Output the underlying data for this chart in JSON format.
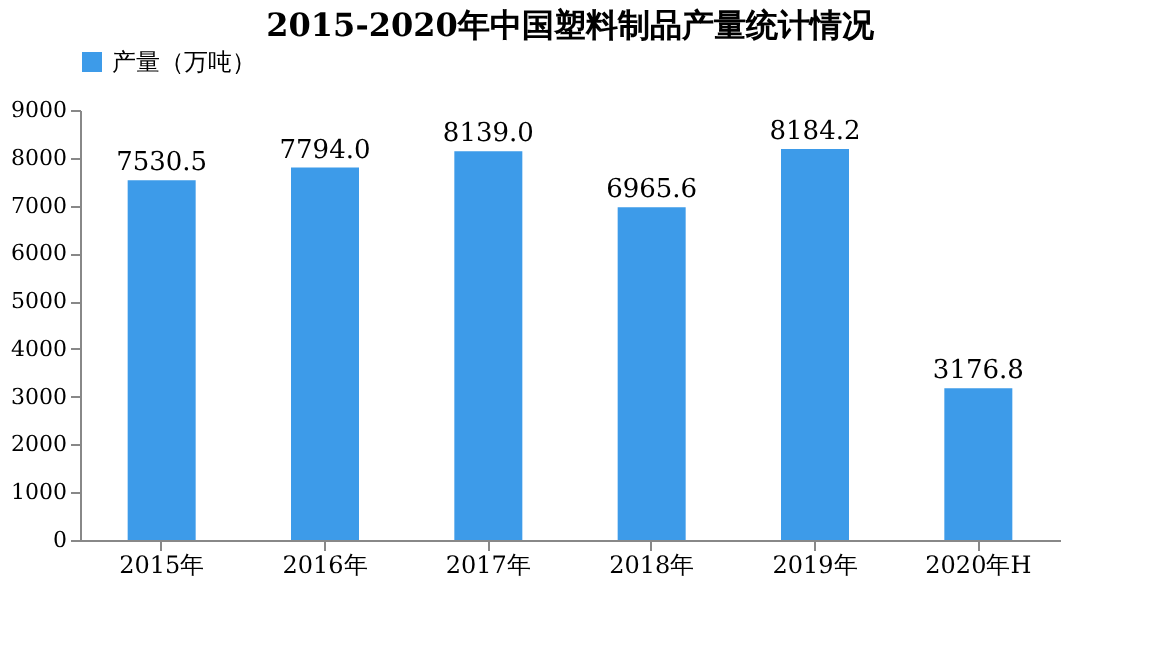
{
  "chart_data": {
    "type": "bar",
    "title": "2015-2020年中国塑料制品产量统计情况",
    "categories": [
      "2015年",
      "2016年",
      "2017年",
      "2018年",
      "2019年",
      "2020年H"
    ],
    "series": [
      {
        "name": "产量（万吨）",
        "color": "#3d9be9",
        "values": [
          7530.5,
          7794.0,
          8139.0,
          6965.6,
          8184.2,
          3176.8
        ]
      }
    ],
    "value_labels": [
      "7530.5",
      "7794.0",
      "8139.0",
      "6965.6",
      "8184.2",
      "3176.8"
    ],
    "ylim": [
      0,
      9000
    ],
    "yticks": [
      0,
      1000,
      2000,
      3000,
      4000,
      5000,
      6000,
      7000,
      8000,
      9000
    ],
    "grid": false,
    "legend": "top"
  }
}
